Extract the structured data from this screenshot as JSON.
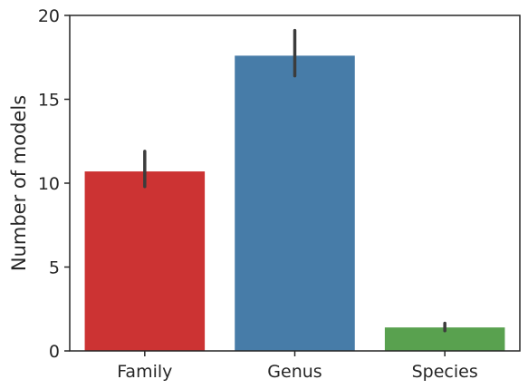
{
  "chart_data": {
    "type": "bar",
    "title": "",
    "xlabel": "",
    "ylabel": "Number of models",
    "categories": [
      "Family",
      "Genus",
      "Species"
    ],
    "values": [
      10.7,
      17.6,
      1.4
    ],
    "error_bars": [
      {
        "low": 9.8,
        "high": 11.9
      },
      {
        "low": 16.4,
        "high": 19.1
      },
      {
        "low": 1.2,
        "high": 1.65
      }
    ],
    "colors": [
      "#cc3333",
      "#477ca8",
      "#59a14f"
    ],
    "ylim": [
      0,
      20
    ],
    "yticks": [
      {
        "value": 0,
        "label": "0"
      },
      {
        "value": 5,
        "label": "5"
      },
      {
        "value": 10,
        "label": "10"
      },
      {
        "value": 15,
        "label": "15"
      },
      {
        "value": 20,
        "label": "20"
      }
    ],
    "grid": false,
    "legend": "none"
  }
}
